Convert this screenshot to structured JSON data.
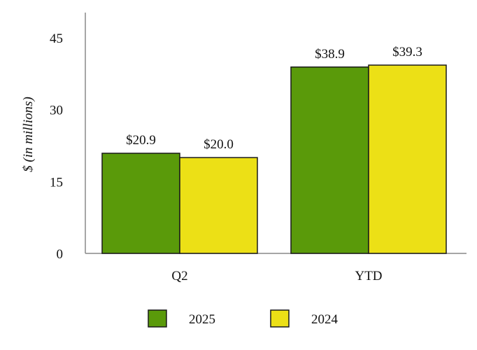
{
  "chart_data": {
    "type": "bar",
    "ylabel": "$ (in millions)",
    "xlabel": "",
    "ylim": [
      0,
      45
    ],
    "yticks": [
      0,
      15,
      30,
      45
    ],
    "grid": false,
    "legend_position": "bottom",
    "categories": [
      "Q2",
      "YTD"
    ],
    "series": [
      {
        "name": "2025",
        "values": [
          20.9,
          38.9
        ],
        "labels": [
          "$20.9",
          "$38.9"
        ],
        "color": "#5a9a0a"
      },
      {
        "name": "2024",
        "values": [
          20.0,
          39.3
        ],
        "labels": [
          "$20.0",
          "$39.3"
        ],
        "color": "#ece016"
      }
    ]
  }
}
